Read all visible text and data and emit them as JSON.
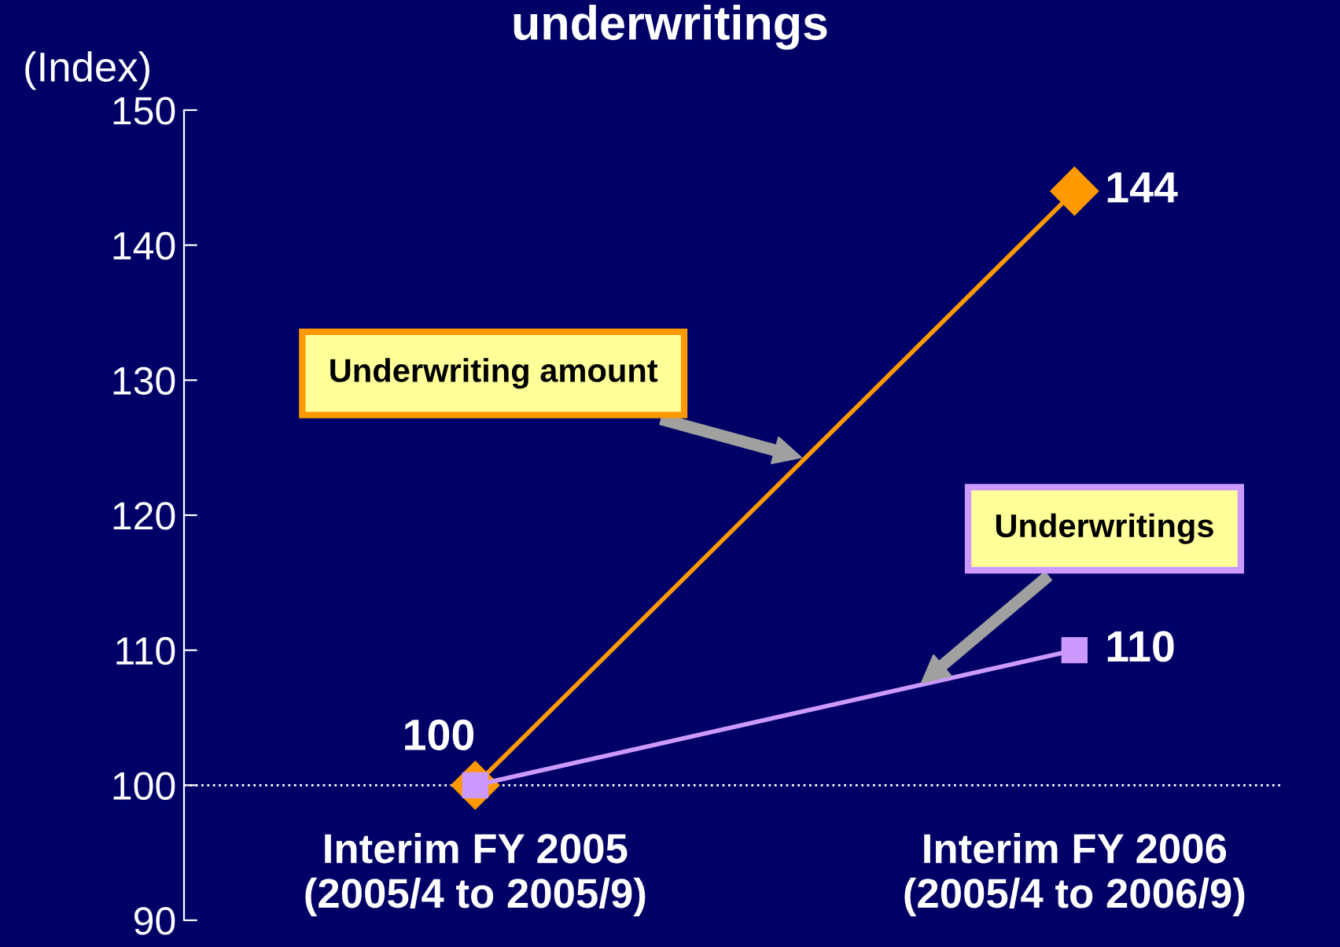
{
  "chart_data": {
    "type": "line",
    "title": "underwritings",
    "ylabel": "(Index)",
    "categories": [
      "Interim FY 2005\n(2005/4 to 2005/9)",
      "Interim FY 2006\n(2005/4 to 2006/9)"
    ],
    "series": [
      {
        "name": "Underwriting amount",
        "color": "#ff9900",
        "values": [
          100,
          144
        ],
        "marker": "diamond",
        "value_labels": [
          null,
          "144"
        ]
      },
      {
        "name": "Underwritings",
        "color": "#cc99ff",
        "values": [
          100,
          110
        ],
        "marker": "square",
        "value_labels": [
          "100",
          "110"
        ]
      }
    ],
    "ylim": [
      90,
      150
    ],
    "yticks": [
      90,
      100,
      110,
      120,
      130,
      140,
      150
    ],
    "ref_lines": [
      {
        "axis": "y",
        "value": 100,
        "color": "#ffffff",
        "line_style": "dotted"
      }
    ],
    "grid": false,
    "legend": false,
    "line_style": "solid"
  }
}
